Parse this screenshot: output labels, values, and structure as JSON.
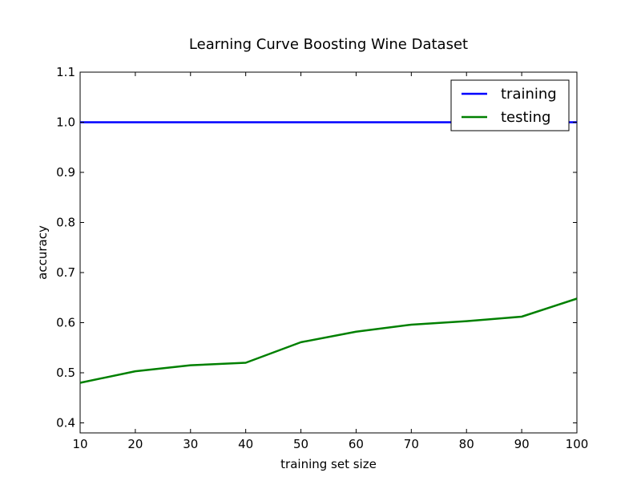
{
  "chart_data": {
    "type": "line",
    "title": "Learning Curve Boosting Wine Dataset",
    "xlabel": "training set size",
    "ylabel": "accuracy",
    "xlim": [
      10,
      100
    ],
    "ylim": [
      0.38,
      1.1
    ],
    "xticks": [
      10,
      20,
      30,
      40,
      50,
      60,
      70,
      80,
      90,
      100
    ],
    "yticks": [
      0.4,
      0.5,
      0.6,
      0.7,
      0.8,
      0.9,
      1.0,
      1.1
    ],
    "ytick_labels": [
      "0.4",
      "0.5",
      "0.6",
      "0.7",
      "0.8",
      "0.9",
      "1.0",
      "1.1"
    ],
    "x": [
      10,
      20,
      30,
      40,
      50,
      60,
      70,
      80,
      90,
      100
    ],
    "series": [
      {
        "name": "training",
        "color": "#0000ff",
        "values": [
          1.0,
          1.0,
          1.0,
          1.0,
          1.0,
          1.0,
          1.0,
          1.0,
          1.0,
          1.0
        ]
      },
      {
        "name": "testing",
        "color": "#008000",
        "values": [
          0.48,
          0.503,
          0.515,
          0.52,
          0.561,
          0.582,
          0.596,
          0.603,
          0.612,
          0.648
        ]
      }
    ],
    "grid": false,
    "legend_position": "top-right"
  }
}
